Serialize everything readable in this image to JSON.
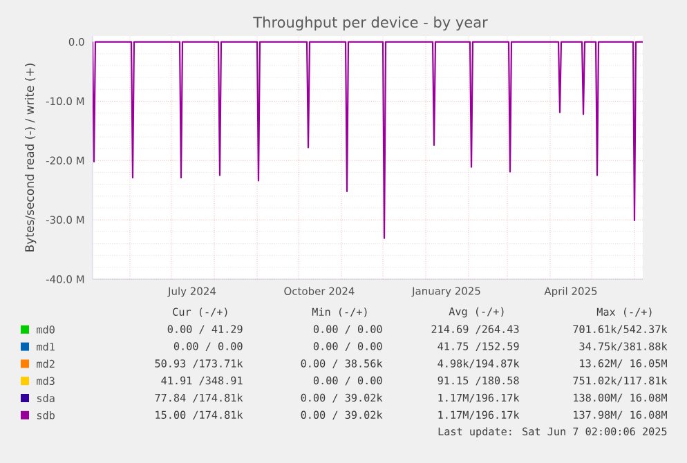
{
  "chart_data": {
    "type": "line",
    "title": "Throughput per device - by year",
    "ylabel": "Bytes/second read (-) / write (+)",
    "xlim": [
      "2024-05-05",
      "2025-06-07"
    ],
    "xticks": [
      {
        "value": "2024-06-01",
        "label": null
      },
      {
        "value": "2024-07-01",
        "label": null
      },
      {
        "value": "2024-07-16",
        "label": "July 2024"
      },
      {
        "value": "2024-08-01",
        "label": null
      },
      {
        "value": "2024-09-01",
        "label": null
      },
      {
        "value": "2024-10-01",
        "label": null
      },
      {
        "value": "2024-10-16",
        "label": "October 2024"
      },
      {
        "value": "2024-11-01",
        "label": null
      },
      {
        "value": "2024-12-01",
        "label": null
      },
      {
        "value": "2025-01-01",
        "label": null
      },
      {
        "value": "2025-01-16",
        "label": "January 2025"
      },
      {
        "value": "2025-02-01",
        "label": null
      },
      {
        "value": "2025-03-01",
        "label": null
      },
      {
        "value": "2025-04-01",
        "label": null
      },
      {
        "value": "2025-04-16",
        "label": "April 2025"
      },
      {
        "value": "2025-05-01",
        "label": null
      },
      {
        "value": "2025-06-01",
        "label": null
      }
    ],
    "ylim": [
      -40000000,
      1000000
    ],
    "yticks": [
      {
        "value": 0,
        "label": "0.0"
      },
      {
        "value": -10000000,
        "label": "-10.0 M"
      },
      {
        "value": -20000000,
        "label": "-20.0 M"
      },
      {
        "value": -30000000,
        "label": "-30.0 M"
      },
      {
        "value": -40000000,
        "label": "-40.0 M"
      }
    ],
    "grid": true,
    "legend": "bottom",
    "series": [
      {
        "name": "md0",
        "color": "#00cc00"
      },
      {
        "name": "md1",
        "color": "#0066b3"
      },
      {
        "name": "md2",
        "color": "#ff8000"
      },
      {
        "name": "md3",
        "color": "#ffcc00"
      },
      {
        "name": "sda",
        "color": "#330099"
      },
      {
        "name": "sdb",
        "color": "#990099",
        "x": [
          "2024-05-05",
          "2024-05-06",
          "2024-05-07",
          "2024-06-02",
          "2024-06-03",
          "2024-06-04",
          "2024-07-07",
          "2024-07-08",
          "2024-07-09",
          "2024-08-04",
          "2024-08-05",
          "2024-08-06",
          "2024-09-01",
          "2024-09-02",
          "2024-09-03",
          "2024-10-07",
          "2024-10-08",
          "2024-10-09",
          "2024-11-04",
          "2024-11-05",
          "2024-11-06",
          "2024-12-01",
          "2024-12-02",
          "2024-12-03",
          "2025-01-06",
          "2025-01-07",
          "2025-01-08",
          "2025-02-02",
          "2025-02-03",
          "2025-02-04",
          "2025-03-02",
          "2025-03-03",
          "2025-03-04",
          "2025-04-07",
          "2025-04-08",
          "2025-04-09",
          "2025-04-24",
          "2025-04-25",
          "2025-04-26",
          "2025-05-04",
          "2025-05-05",
          "2025-05-06",
          "2025-05-31",
          "2025-06-01",
          "2025-06-02",
          "2025-06-07"
        ],
        "values": [
          0,
          -20200000,
          0,
          0,
          -22900000,
          0,
          0,
          -22900000,
          0,
          0,
          -22500000,
          0,
          0,
          -23400000,
          0,
          0,
          -17800000,
          0,
          0,
          -25200000,
          0,
          0,
          -33100000,
          0,
          0,
          -17400000,
          0,
          0,
          -21100000,
          0,
          0,
          -21900000,
          0,
          0,
          -11900000,
          0,
          0,
          -12200000,
          0,
          0,
          -22500000,
          0,
          0,
          -30100000,
          0,
          0
        ]
      }
    ],
    "annotations": [
      "Cur (-/+)",
      "Min (-/+)",
      "Avg (-/+)",
      "Max (-/+)",
      "0.00 / 41.29",
      "0.00 /  0.00",
      "214.69 /264.43",
      "701.61k/542.37k",
      "0.00 /  0.00",
      "0.00 /  0.00",
      "41.75 /152.59",
      "34.75k/381.88k",
      "50.93 /173.71k",
      "0.00 / 38.56k",
      "4.98k/194.87k",
      "13.62M/ 16.05M",
      "41.91 /348.91",
      "0.00 /  0.00",
      "91.15 /180.58",
      "751.02k/117.81k",
      "77.84 /174.81k",
      "0.00 / 39.02k",
      "1.17M/196.17k",
      "138.00M/ 16.08M",
      "15.00 /174.81k",
      "0.00 / 39.02k",
      "1.17M/196.17k",
      "137.98M/ 16.08M",
      "Last update: Sat Jun  7 02:00:06 2025"
    ]
  }
}
